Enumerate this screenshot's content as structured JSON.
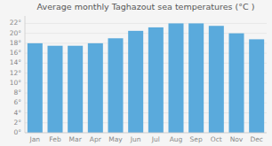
{
  "chart_data": {
    "type": "bar",
    "title": "Average monthly Taghazout sea temperatures (°C )",
    "categories": [
      "Jan",
      "Feb",
      "Mar",
      "Apr",
      "May",
      "Jun",
      "Jul",
      "Aug",
      "Sep",
      "Oct",
      "Nov",
      "Dec"
    ],
    "values": [
      18.0,
      17.5,
      17.5,
      18.0,
      19.0,
      20.5,
      21.2,
      22.0,
      22.0,
      21.5,
      20.0,
      18.8
    ],
    "color": "#5aaadc",
    "ylim": [
      0,
      23.5
    ],
    "yticks": [
      {
        "value": 0,
        "label": "0°"
      },
      {
        "value": 2,
        "label": "2°"
      },
      {
        "value": 4,
        "label": "4°"
      },
      {
        "value": 6,
        "label": "6°"
      },
      {
        "value": 8,
        "label": "8°"
      },
      {
        "value": 10,
        "label": "10°"
      },
      {
        "value": 12,
        "label": "12°"
      },
      {
        "value": 14,
        "label": "14°"
      },
      {
        "value": 16,
        "label": "16°"
      },
      {
        "value": 18,
        "label": "18°"
      },
      {
        "value": 20,
        "label": "20°"
      },
      {
        "value": 22,
        "label": "22°"
      }
    ],
    "grid": true
  }
}
